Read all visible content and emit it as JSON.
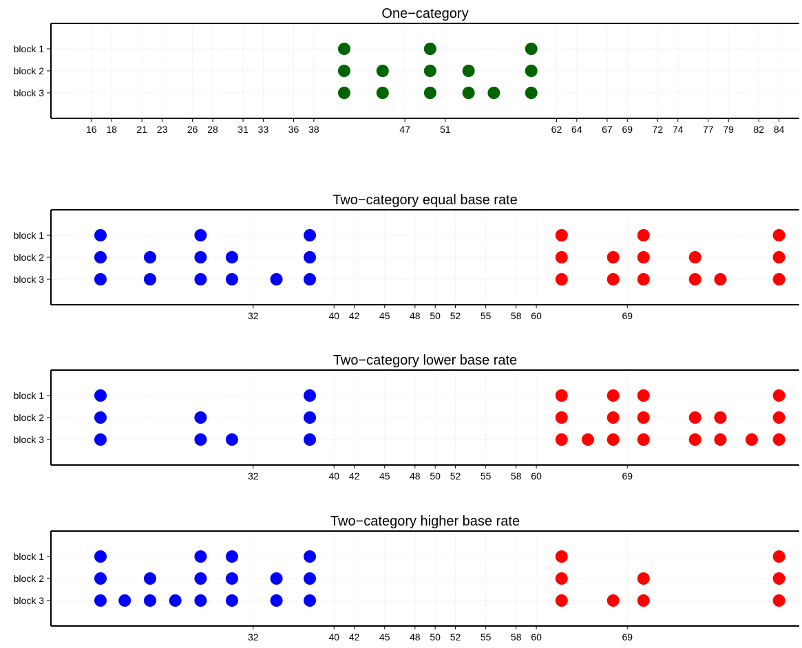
{
  "chart_data": [
    {
      "type": "scatter",
      "title": "One−category",
      "xlabel": "",
      "ylabel": "",
      "y_categories": [
        "block 1",
        "block 2",
        "block 3"
      ],
      "xlim": [
        12,
        86
      ],
      "x_ticks": [
        16,
        18,
        21,
        23,
        26,
        28,
        31,
        33,
        36,
        38,
        47,
        51,
        62,
        64,
        67,
        69,
        72,
        74,
        77,
        79,
        82,
        84
      ],
      "grid": true,
      "series": [
        {
          "color": "#006400",
          "points": [
            {
              "x": 41,
              "y": "block 1"
            },
            {
              "x": 49.5,
              "y": "block 1"
            },
            {
              "x": 59.5,
              "y": "block 1"
            },
            {
              "x": 41,
              "y": "block 2"
            },
            {
              "x": 44.8,
              "y": "block 2"
            },
            {
              "x": 49.5,
              "y": "block 2"
            },
            {
              "x": 53.3,
              "y": "block 2"
            },
            {
              "x": 59.5,
              "y": "block 2"
            },
            {
              "x": 41,
              "y": "block 3"
            },
            {
              "x": 44.8,
              "y": "block 3"
            },
            {
              "x": 49.5,
              "y": "block 3"
            },
            {
              "x": 53.3,
              "y": "block 3"
            },
            {
              "x": 55.8,
              "y": "block 3"
            },
            {
              "x": 59.5,
              "y": "block 3"
            }
          ]
        }
      ]
    },
    {
      "type": "scatter",
      "title": "Two−category equal base rate",
      "xlabel": "",
      "ylabel": "",
      "y_categories": [
        "block 1",
        "block 2",
        "block 3"
      ],
      "xlim": [
        12,
        86
      ],
      "x_ticks": [
        32,
        40,
        42,
        45,
        48,
        50,
        52,
        55,
        58,
        60,
        69
      ],
      "grid": true,
      "series": [
        {
          "color": "#0000ff",
          "points": [
            {
              "x": 16.9,
              "y": "block 1"
            },
            {
              "x": 26.8,
              "y": "block 1"
            },
            {
              "x": 37.6,
              "y": "block 1"
            },
            {
              "x": 16.9,
              "y": "block 2"
            },
            {
              "x": 21.8,
              "y": "block 2"
            },
            {
              "x": 26.8,
              "y": "block 2"
            },
            {
              "x": 29.9,
              "y": "block 2"
            },
            {
              "x": 37.6,
              "y": "block 2"
            },
            {
              "x": 16.9,
              "y": "block 3"
            },
            {
              "x": 21.8,
              "y": "block 3"
            },
            {
              "x": 26.8,
              "y": "block 3"
            },
            {
              "x": 29.9,
              "y": "block 3"
            },
            {
              "x": 34.3,
              "y": "block 3"
            },
            {
              "x": 37.6,
              "y": "block 3"
            }
          ]
        },
        {
          "color": "#ff0000",
          "points": [
            {
              "x": 62.5,
              "y": "block 1"
            },
            {
              "x": 70.6,
              "y": "block 1"
            },
            {
              "x": 84,
              "y": "block 1"
            },
            {
              "x": 62.5,
              "y": "block 2"
            },
            {
              "x": 67.6,
              "y": "block 2"
            },
            {
              "x": 70.6,
              "y": "block 2"
            },
            {
              "x": 75.7,
              "y": "block 2"
            },
            {
              "x": 84,
              "y": "block 2"
            },
            {
              "x": 62.5,
              "y": "block 3"
            },
            {
              "x": 67.6,
              "y": "block 3"
            },
            {
              "x": 70.6,
              "y": "block 3"
            },
            {
              "x": 75.7,
              "y": "block 3"
            },
            {
              "x": 78.2,
              "y": "block 3"
            },
            {
              "x": 84,
              "y": "block 3"
            }
          ]
        }
      ]
    },
    {
      "type": "scatter",
      "title": "Two−category lower base rate",
      "xlabel": "",
      "ylabel": "",
      "y_categories": [
        "block 1",
        "block 2",
        "block 3"
      ],
      "xlim": [
        12,
        86
      ],
      "x_ticks": [
        32,
        40,
        42,
        45,
        48,
        50,
        52,
        55,
        58,
        60,
        69
      ],
      "grid": true,
      "series": [
        {
          "color": "#0000ff",
          "points": [
            {
              "x": 16.9,
              "y": "block 1"
            },
            {
              "x": 37.6,
              "y": "block 1"
            },
            {
              "x": 16.9,
              "y": "block 2"
            },
            {
              "x": 26.8,
              "y": "block 2"
            },
            {
              "x": 37.6,
              "y": "block 2"
            },
            {
              "x": 16.9,
              "y": "block 3"
            },
            {
              "x": 26.8,
              "y": "block 3"
            },
            {
              "x": 29.9,
              "y": "block 3"
            },
            {
              "x": 37.6,
              "y": "block 3"
            }
          ]
        },
        {
          "color": "#ff0000",
          "points": [
            {
              "x": 62.5,
              "y": "block 1"
            },
            {
              "x": 67.6,
              "y": "block 1"
            },
            {
              "x": 70.6,
              "y": "block 1"
            },
            {
              "x": 84,
              "y": "block 1"
            },
            {
              "x": 62.5,
              "y": "block 2"
            },
            {
              "x": 67.6,
              "y": "block 2"
            },
            {
              "x": 70.6,
              "y": "block 2"
            },
            {
              "x": 75.7,
              "y": "block 2"
            },
            {
              "x": 78.2,
              "y": "block 2"
            },
            {
              "x": 84,
              "y": "block 2"
            },
            {
              "x": 62.5,
              "y": "block 3"
            },
            {
              "x": 65.1,
              "y": "block 3"
            },
            {
              "x": 67.6,
              "y": "block 3"
            },
            {
              "x": 70.6,
              "y": "block 3"
            },
            {
              "x": 75.7,
              "y": "block 3"
            },
            {
              "x": 78.2,
              "y": "block 3"
            },
            {
              "x": 81.3,
              "y": "block 3"
            },
            {
              "x": 84,
              "y": "block 3"
            }
          ]
        }
      ]
    },
    {
      "type": "scatter",
      "title": "Two−category higher base rate",
      "xlabel": "",
      "ylabel": "",
      "y_categories": [
        "block 1",
        "block 2",
        "block 3"
      ],
      "xlim": [
        12,
        86
      ],
      "x_ticks": [
        32,
        40,
        42,
        45,
        48,
        50,
        52,
        55,
        58,
        60,
        69
      ],
      "grid": true,
      "series": [
        {
          "color": "#0000ff",
          "points": [
            {
              "x": 16.9,
              "y": "block 1"
            },
            {
              "x": 26.8,
              "y": "block 1"
            },
            {
              "x": 29.9,
              "y": "block 1"
            },
            {
              "x": 37.6,
              "y": "block 1"
            },
            {
              "x": 16.9,
              "y": "block 2"
            },
            {
              "x": 21.8,
              "y": "block 2"
            },
            {
              "x": 26.8,
              "y": "block 2"
            },
            {
              "x": 29.9,
              "y": "block 2"
            },
            {
              "x": 34.3,
              "y": "block 2"
            },
            {
              "x": 37.6,
              "y": "block 2"
            },
            {
              "x": 16.9,
              "y": "block 3"
            },
            {
              "x": 19.3,
              "y": "block 3"
            },
            {
              "x": 21.8,
              "y": "block 3"
            },
            {
              "x": 24.3,
              "y": "block 3"
            },
            {
              "x": 26.8,
              "y": "block 3"
            },
            {
              "x": 29.9,
              "y": "block 3"
            },
            {
              "x": 34.3,
              "y": "block 3"
            },
            {
              "x": 37.6,
              "y": "block 3"
            }
          ]
        },
        {
          "color": "#ff0000",
          "points": [
            {
              "x": 62.5,
              "y": "block 1"
            },
            {
              "x": 84,
              "y": "block 1"
            },
            {
              "x": 62.5,
              "y": "block 2"
            },
            {
              "x": 70.6,
              "y": "block 2"
            },
            {
              "x": 84,
              "y": "block 2"
            },
            {
              "x": 62.5,
              "y": "block 3"
            },
            {
              "x": 67.6,
              "y": "block 3"
            },
            {
              "x": 70.6,
              "y": "block 3"
            },
            {
              "x": 84,
              "y": "block 3"
            }
          ]
        }
      ]
    }
  ]
}
